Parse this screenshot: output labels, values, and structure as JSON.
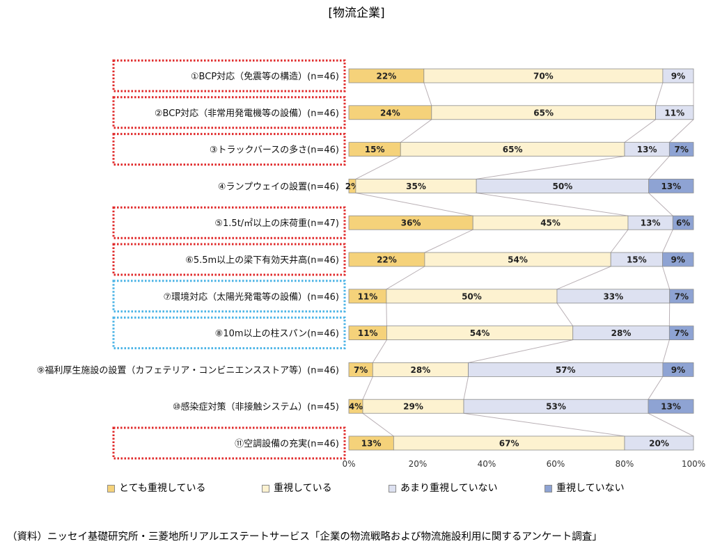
{
  "chart_data": {
    "type": "bar",
    "orientation": "horizontal",
    "stacked": "percent",
    "title": "[物流企業]",
    "categories": [
      "①BCP対応（免震等の構造）(n=46)",
      "②BCP対応（非常用発電機等の設備）(n=46)",
      "③トラックバースの多さ(n=46)",
      "④ランプウェイの設置(n=46)",
      "⑤1.5t/㎡以上の床荷重(n=47)",
      "⑥5.5m以上の梁下有効天井高(n=46)",
      "⑦環境対応（太陽光発電等の設備）(n=46)",
      "⑧10m以上の柱スパン(n=46)",
      "⑨福利厚生施設の設置（カフェテリア・コンビニエンスストア等）(n=46)",
      "⑩感染症対策（非接触システム）(n=45)",
      "⑪空調設備の充実(n=46)"
    ],
    "series": [
      {
        "name": "とても重視している",
        "color": "#f5d27a",
        "values": [
          22,
          24,
          15,
          2,
          36,
          22,
          11,
          11,
          7,
          4,
          13
        ]
      },
      {
        "name": "重視している",
        "color": "#fdf2d0",
        "values": [
          70,
          65,
          65,
          35,
          45,
          54,
          50,
          54,
          28,
          29,
          67
        ]
      },
      {
        "name": "あまり重視していない",
        "color": "#dde1f1",
        "values": [
          9,
          11,
          13,
          50,
          13,
          15,
          33,
          28,
          57,
          53,
          20
        ]
      },
      {
        "name": "重視していない",
        "color": "#8ea3d3",
        "values": [
          0,
          0,
          7,
          13,
          6,
          9,
          7,
          7,
          9,
          13,
          0
        ]
      }
    ],
    "x_ticks": [
      "0%",
      "20%",
      "40%",
      "60%",
      "80%",
      "100%"
    ],
    "xlim": [
      0,
      100
    ],
    "grid": false,
    "legend_position": "bottom",
    "highlight_red": [
      0,
      1,
      2,
      4,
      5,
      10
    ],
    "highlight_blue": [
      6,
      7
    ],
    "highlight_colors": {
      "red": "#e0292a",
      "blue": "#4ab3e6"
    },
    "connector_color": "#b9b0b5"
  },
  "source_note": "（資料）ニッセイ基礎研究所・三菱地所リアルエステートサービス「企業の物流戦略および物流施設利用に関するアンケート調査」"
}
